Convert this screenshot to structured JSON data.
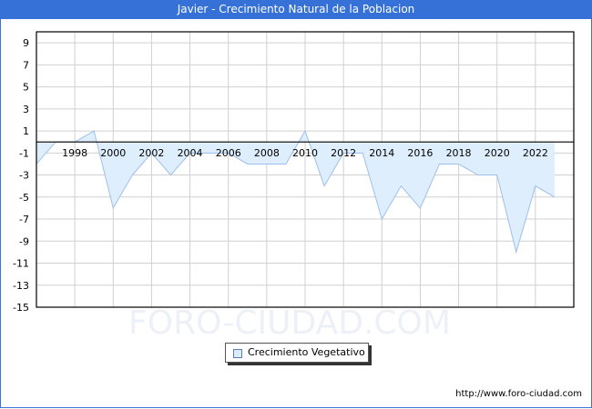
{
  "header": {
    "title": "Javier - Crecimiento Natural de la Poblacion"
  },
  "watermark": "FORO-CIUDAD.COM",
  "credit": "http://www.foro-ciudad.com",
  "legend": {
    "label": "Crecimiento Vegetativo"
  },
  "colors": {
    "title_bg": "#3571d6",
    "area_fill": "#deeefc",
    "line": "#9dbfee",
    "grid": "#d0d0d0",
    "zero_line": "#000000"
  },
  "chart_data": {
    "type": "area",
    "title": "Javier - Crecimiento Natural de la Poblacion",
    "xlabel": "",
    "ylabel": "",
    "x": [
      1996,
      1997,
      1998,
      1999,
      2000,
      2001,
      2002,
      2003,
      2004,
      2005,
      2006,
      2007,
      2008,
      2009,
      2010,
      2011,
      2012,
      2013,
      2014,
      2015,
      2016,
      2017,
      2018,
      2019,
      2020,
      2021,
      2022,
      2023
    ],
    "series": [
      {
        "name": "Crecimiento Vegetativo",
        "values": [
          -2,
          0,
          0,
          1,
          -6,
          -3,
          -1,
          -3,
          -1,
          -1,
          -1,
          -2,
          -2,
          -2,
          1,
          -4,
          -1,
          -1,
          -7,
          -4,
          -6,
          -2,
          -2,
          -3,
          -3,
          -10,
          -4,
          -5
        ]
      }
    ],
    "x_tick_labels": [
      "1998",
      "2000",
      "2002",
      "2004",
      "2006",
      "2008",
      "2010",
      "2012",
      "2014",
      "2016",
      "2018",
      "2020",
      "2022"
    ],
    "y_tick_labels": [
      "9",
      "7",
      "5",
      "3",
      "1",
      "-1",
      "-3",
      "-5",
      "-7",
      "-9",
      "-11",
      "-13",
      "-15"
    ],
    "ylim": [
      -15,
      10
    ],
    "xlim": [
      1996,
      2024
    ],
    "grid": true,
    "legend_position": "bottom-center"
  }
}
